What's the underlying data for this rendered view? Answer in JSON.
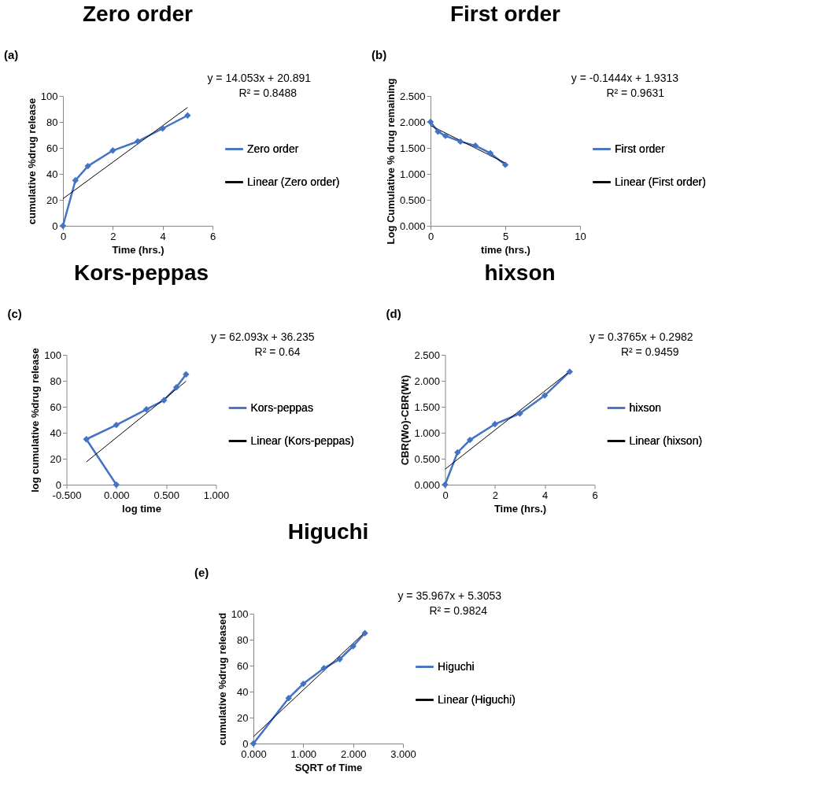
{
  "chart_data": [
    {
      "type": "line",
      "title": "Zero order",
      "xlabel": "Time (hrs.)",
      "ylabel": "cumulative %drug release",
      "annotations": [
        "(a)",
        "y = 14.053x + 20.891",
        "R² = 0.8488"
      ],
      "x": [
        0,
        0.5,
        1,
        2,
        3,
        4,
        5
      ],
      "series": [
        {
          "name": "Zero order",
          "color": "#4472c4",
          "values": [
            0,
            35,
            46,
            58,
            65,
            75,
            85
          ]
        },
        {
          "name": "Linear (Zero order)",
          "type": "line",
          "color": "#000000",
          "marker": "none",
          "x": [
            0,
            5
          ],
          "values": [
            20.891,
            91.156
          ]
        }
      ],
      "xlim": [
        0,
        6
      ],
      "xticks": [
        0,
        2,
        4,
        6
      ],
      "ylim": [
        0,
        100
      ],
      "yticks": [
        0,
        20,
        40,
        60,
        80,
        100
      ],
      "marker": "diamond",
      "legend": "right"
    },
    {
      "type": "line",
      "title": "First order",
      "xlabel": "time (hrs.)",
      "ylabel": "Log Cumulative % drug remaining",
      "annotations": [
        "(b)",
        "y = -0.1444x + 1.9313",
        "R² = 0.9631"
      ],
      "x": [
        0,
        0.5,
        1,
        2,
        3,
        4,
        5
      ],
      "series": [
        {
          "name": "First order",
          "color": "#4472c4",
          "values": [
            2.0,
            1.813,
            1.732,
            1.623,
            1.544,
            1.398,
            1.176
          ]
        },
        {
          "name": "Linear (First order)",
          "type": "line",
          "color": "#000000",
          "marker": "none",
          "x": [
            0,
            5
          ],
          "values": [
            1.9313,
            1.2093
          ]
        }
      ],
      "xlim": [
        0,
        10
      ],
      "xticks": [
        0,
        5,
        10
      ],
      "ylim": [
        0,
        2.5
      ],
      "yticks": [
        {
          "value": 0,
          "label": "0.000"
        },
        {
          "value": 0.5,
          "label": "0.500"
        },
        {
          "value": 1,
          "label": "1.000"
        },
        {
          "value": 1.5,
          "label": "1.500"
        },
        {
          "value": 2,
          "label": "2.000"
        },
        {
          "value": 2.5,
          "label": "2.500"
        }
      ],
      "marker": "diamond",
      "legend": "right"
    },
    {
      "type": "line",
      "title": "Kors-peppas",
      "xlabel": "log time",
      "ylabel": "log cumulative %drug release",
      "annotations": [
        "(c)",
        "y = 62.093x + 36.235",
        "R² = 0.64"
      ],
      "x": [
        0,
        -0.301,
        0,
        0.301,
        0.477,
        0.602,
        0.699
      ],
      "series": [
        {
          "name": "Kors-peppas",
          "color": "#4472c4",
          "values": [
            0,
            35,
            46,
            58,
            65,
            75,
            85
          ]
        },
        {
          "name": "Linear (Kors-peppas)",
          "type": "line",
          "color": "#000000",
          "marker": "none",
          "x": [
            -0.301,
            0.699
          ],
          "values": [
            17.545,
            79.638
          ]
        }
      ],
      "xlim": [
        -0.5,
        1
      ],
      "xticks": [
        {
          "value": -0.5,
          "label": "-0.500"
        },
        {
          "value": 0,
          "label": "0.000"
        },
        {
          "value": 0.5,
          "label": "0.500"
        },
        {
          "value": 1,
          "label": "1.000"
        }
      ],
      "ylim": [
        0,
        100
      ],
      "yticks": [
        0,
        20,
        40,
        60,
        80,
        100
      ],
      "marker": "diamond",
      "legend": "right"
    },
    {
      "type": "line",
      "title": "hixson",
      "xlabel": "Time (hrs.)",
      "ylabel": "CBR(Wo)-CBR(Wt)",
      "annotations": [
        "(d)",
        "y = 0.3765x + 0.2982",
        "R² = 0.9459"
      ],
      "x": [
        0,
        0.5,
        1,
        2,
        3,
        4,
        5
      ],
      "series": [
        {
          "name": "hixson",
          "color": "#4472c4",
          "values": [
            0,
            0.621,
            0.862,
            1.166,
            1.371,
            1.718,
            2.176
          ]
        },
        {
          "name": "Linear (hixson)",
          "type": "line",
          "color": "#000000",
          "marker": "none",
          "x": [
            0,
            5
          ],
          "values": [
            0.2982,
            2.1807
          ]
        }
      ],
      "xlim": [
        0,
        6
      ],
      "xticks": [
        0,
        2,
        4,
        6
      ],
      "ylim": [
        0,
        2.5
      ],
      "yticks": [
        {
          "value": 0,
          "label": "0.000"
        },
        {
          "value": 0.5,
          "label": "0.500"
        },
        {
          "value": 1,
          "label": "1.000"
        },
        {
          "value": 1.5,
          "label": "1.500"
        },
        {
          "value": 2,
          "label": "2.000"
        },
        {
          "value": 2.5,
          "label": "2.500"
        }
      ],
      "marker": "diamond",
      "legend": "right"
    },
    {
      "type": "line",
      "title": "Higuchi",
      "xlabel": "SQRT of Time",
      "ylabel": "cumulative %drug released",
      "annotations": [
        "(e)",
        "y = 35.967x + 5.3053",
        "R² = 0.9824"
      ],
      "x": [
        0,
        0.707,
        1,
        1.414,
        1.732,
        2,
        2.236
      ],
      "series": [
        {
          "name": "Higuchi",
          "color": "#4472c4",
          "values": [
            0,
            35,
            46,
            58,
            65,
            75,
            85
          ]
        },
        {
          "name": "Linear (Higuchi)",
          "type": "line",
          "color": "#000000",
          "marker": "none",
          "x": [
            0,
            2.236
          ],
          "values": [
            5.3053,
            85.727
          ]
        }
      ],
      "xlim": [
        0,
        3
      ],
      "xticks": [
        {
          "value": 0,
          "label": "0.000"
        },
        {
          "value": 1,
          "label": "1.000"
        },
        {
          "value": 2,
          "label": "2.000"
        },
        {
          "value": 3,
          "label": "3.000"
        }
      ],
      "ylim": [
        0,
        100
      ],
      "yticks": [
        0,
        20,
        40,
        60,
        80,
        100
      ],
      "marker": "diamond",
      "legend": "right"
    }
  ]
}
